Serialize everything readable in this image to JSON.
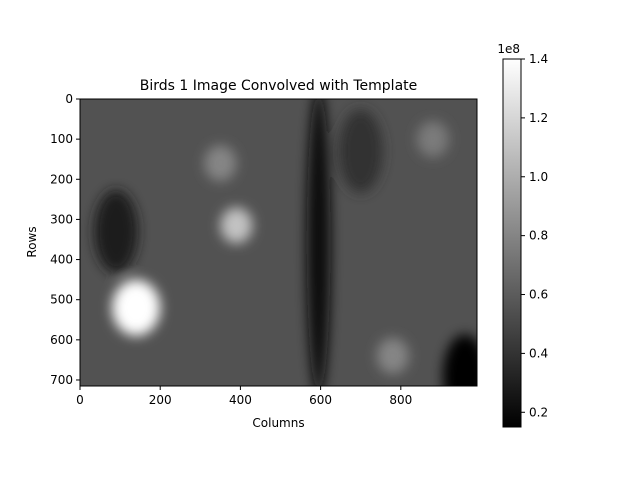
{
  "chart_data": {
    "type": "heatmap",
    "title": "Birds 1 Image Convolved with Template",
    "xlabel": "Columns",
    "ylabel": "Rows",
    "xlim": [
      0,
      990
    ],
    "ylim": [
      715,
      0
    ],
    "x_ticks": [
      0,
      200,
      400,
      600,
      800
    ],
    "y_ticks": [
      0,
      100,
      200,
      300,
      400,
      500,
      600,
      700
    ],
    "colormap": "gray",
    "colorbar": {
      "range": [
        0.15,
        1.4
      ],
      "ticks": [
        0.2,
        0.4,
        0.6,
        0.8,
        1.0,
        1.2,
        1.4
      ],
      "tick_labels": [
        "0.2",
        "0.4",
        "0.6",
        "0.8",
        "1.0",
        "1.2",
        "1.4"
      ],
      "scale_label": "1e8"
    },
    "base_value": 0.55,
    "bright_regions": [
      {
        "col": 140,
        "row": 520,
        "value": 1.4
      },
      {
        "col": 390,
        "row": 315,
        "value": 1.1
      },
      {
        "col": 350,
        "row": 160,
        "value": 0.8
      },
      {
        "col": 780,
        "row": 640,
        "value": 0.8
      },
      {
        "col": 880,
        "row": 100,
        "value": 0.75
      }
    ],
    "dark_regions": [
      {
        "col": 595,
        "row": 350,
        "value": 0.2
      },
      {
        "col": 90,
        "row": 330,
        "value": 0.3
      },
      {
        "col": 960,
        "row": 690,
        "value": 0.15
      },
      {
        "col": 700,
        "row": 130,
        "value": 0.4
      }
    ]
  }
}
